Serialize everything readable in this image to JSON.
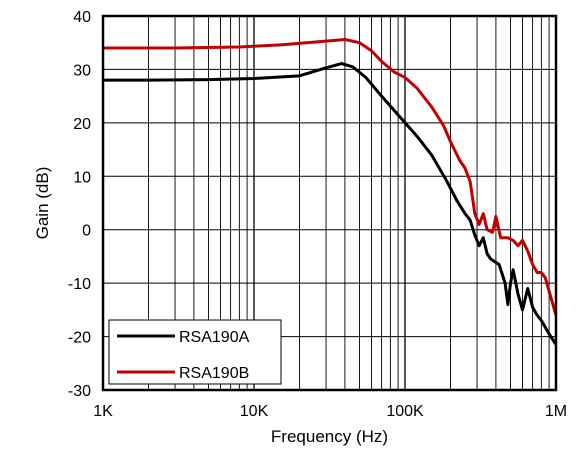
{
  "chart_data": {
    "type": "line",
    "xlabel": "Frequency (Hz)",
    "ylabel": "Gain (dB)",
    "x_scale": "log",
    "xlim": [
      1000,
      1000000
    ],
    "ylim": [
      -30,
      40
    ],
    "x_ticks": [
      {
        "value": 1000,
        "label": "1K"
      },
      {
        "value": 10000,
        "label": "10K"
      },
      {
        "value": 100000,
        "label": "100K"
      },
      {
        "value": 1000000,
        "label": "1M"
      }
    ],
    "y_ticks": [
      {
        "value": 40,
        "label": "40"
      },
      {
        "value": 30,
        "label": "30"
      },
      {
        "value": 20,
        "label": "20"
      },
      {
        "value": 10,
        "label": "10"
      },
      {
        "value": 0,
        "label": "0"
      },
      {
        "value": -10,
        "label": "-10"
      },
      {
        "value": -20,
        "label": "-20"
      },
      {
        "value": -30,
        "label": "-30"
      }
    ],
    "grid": true,
    "legend_position": "bottom-left",
    "series": [
      {
        "name": "RSA190A",
        "color": "#000000",
        "points": [
          [
            1000,
            28.0
          ],
          [
            2000,
            28.0
          ],
          [
            5000,
            28.1
          ],
          [
            10000,
            28.3
          ],
          [
            20000,
            28.8
          ],
          [
            30000,
            30.3
          ],
          [
            38000,
            31.1
          ],
          [
            45000,
            30.5
          ],
          [
            55000,
            28.5
          ],
          [
            70000,
            25.0
          ],
          [
            90000,
            21.5
          ],
          [
            120000,
            17.5
          ],
          [
            150000,
            14.0
          ],
          [
            190000,
            9.0
          ],
          [
            220000,
            5.5
          ],
          [
            250000,
            3.0
          ],
          [
            270000,
            1.8
          ],
          [
            290000,
            -1.0
          ],
          [
            310000,
            -3.0
          ],
          [
            330000,
            -1.5
          ],
          [
            350000,
            -4.5
          ],
          [
            370000,
            -5.5
          ],
          [
            420000,
            -6.5
          ],
          [
            460000,
            -10.0
          ],
          [
            480000,
            -14.0
          ],
          [
            500000,
            -10.0
          ],
          [
            520000,
            -7.5
          ],
          [
            560000,
            -12.0
          ],
          [
            600000,
            -15.0
          ],
          [
            650000,
            -11.0
          ],
          [
            700000,
            -14.5
          ],
          [
            750000,
            -16.0
          ],
          [
            800000,
            -17.0
          ],
          [
            900000,
            -19.5
          ],
          [
            1000000,
            -21.5
          ]
        ]
      },
      {
        "name": "RSA190B",
        "color": "#c00000",
        "points": [
          [
            1000,
            34.0
          ],
          [
            3000,
            34.0
          ],
          [
            8000,
            34.2
          ],
          [
            15000,
            34.6
          ],
          [
            25000,
            35.1
          ],
          [
            40000,
            35.6
          ],
          [
            50000,
            35.0
          ],
          [
            60000,
            33.5
          ],
          [
            70000,
            31.5
          ],
          [
            85000,
            29.5
          ],
          [
            100000,
            28.5
          ],
          [
            120000,
            26.5
          ],
          [
            150000,
            23.0
          ],
          [
            180000,
            19.5
          ],
          [
            200000,
            16.5
          ],
          [
            230000,
            13.0
          ],
          [
            250000,
            11.5
          ],
          [
            270000,
            9.0
          ],
          [
            290000,
            3.0
          ],
          [
            310000,
            1.0
          ],
          [
            330000,
            3.0
          ],
          [
            350000,
            0.0
          ],
          [
            380000,
            -0.5
          ],
          [
            400000,
            2.5
          ],
          [
            430000,
            -1.5
          ],
          [
            480000,
            -1.5
          ],
          [
            520000,
            -2.0
          ],
          [
            560000,
            -3.0
          ],
          [
            600000,
            -2.0
          ],
          [
            650000,
            -4.0
          ],
          [
            700000,
            -6.5
          ],
          [
            750000,
            -8.0
          ],
          [
            800000,
            -8.0
          ],
          [
            850000,
            -9.0
          ],
          [
            900000,
            -11.5
          ],
          [
            1000000,
            -16.0
          ]
        ]
      }
    ]
  }
}
